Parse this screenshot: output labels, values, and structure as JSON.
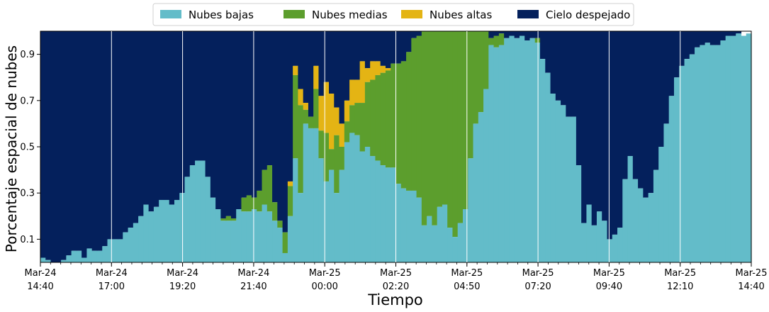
{
  "chart_data": {
    "type": "area",
    "stacked": true,
    "xlabel": "Tiempo",
    "ylabel": "Porcentaje espacial de nubes",
    "ylim": [
      0,
      1
    ],
    "yticks": [
      0.1,
      0.3,
      0.5,
      0.7,
      0.9
    ],
    "grid": "vertical lines at labeled x ticks",
    "legend_position": "top-center",
    "x_tick_labels": [
      {
        "date": "Mar-24",
        "time": "14:40"
      },
      {
        "date": "Mar-24",
        "time": "17:00"
      },
      {
        "date": "Mar-24",
        "time": "19:20"
      },
      {
        "date": "Mar-24",
        "time": "21:40"
      },
      {
        "date": "Mar-25",
        "time": "00:00"
      },
      {
        "date": "Mar-25",
        "time": "02:20"
      },
      {
        "date": "Mar-25",
        "time": "04:50"
      },
      {
        "date": "Mar-25",
        "time": "07:20"
      },
      {
        "date": "Mar-25",
        "time": "09:40"
      },
      {
        "date": "Mar-25",
        "time": "12:10"
      },
      {
        "date": "Mar-25",
        "time": "14:40"
      }
    ],
    "series": [
      {
        "name": "Nubes bajas",
        "color": "#63bcc9",
        "values": [
          0.02,
          0.01,
          0.0,
          0.0,
          0.01,
          0.03,
          0.05,
          0.05,
          0.02,
          0.06,
          0.05,
          0.05,
          0.07,
          0.1,
          0.1,
          0.1,
          0.13,
          0.15,
          0.17,
          0.2,
          0.25,
          0.22,
          0.24,
          0.27,
          0.27,
          0.25,
          0.27,
          0.3,
          0.37,
          0.42,
          0.44,
          0.44,
          0.37,
          0.28,
          0.23,
          0.18,
          0.18,
          0.18,
          0.23,
          0.22,
          0.22,
          0.23,
          0.22,
          0.25,
          0.22,
          0.18,
          0.15,
          0.04,
          0.2,
          0.45,
          0.3,
          0.6,
          0.58,
          0.58,
          0.45,
          0.35,
          0.4,
          0.3,
          0.4,
          0.52,
          0.56,
          0.55,
          0.48,
          0.5,
          0.46,
          0.44,
          0.42,
          0.41,
          0.41,
          0.34,
          0.32,
          0.31,
          0.31,
          0.28,
          0.16,
          0.2,
          0.16,
          0.24,
          0.25,
          0.15,
          0.11,
          0.17,
          0.23,
          0.45,
          0.6,
          0.65,
          0.75,
          0.94,
          0.93,
          0.94,
          0.97,
          0.98,
          0.97,
          0.98,
          0.96,
          0.97,
          0.95,
          0.88,
          0.82,
          0.73,
          0.7,
          0.68,
          0.63,
          0.63,
          0.42,
          0.17,
          0.25,
          0.16,
          0.22,
          0.18,
          0.1,
          0.12,
          0.15,
          0.36,
          0.46,
          0.36,
          0.32,
          0.28,
          0.3,
          0.4,
          0.5,
          0.6,
          0.72,
          0.8,
          0.85,
          0.88,
          0.9,
          0.93,
          0.94,
          0.95,
          0.94,
          0.94,
          0.96,
          0.98,
          0.98,
          0.99,
          0.98,
          0.99
        ]
      },
      {
        "name": "Nubes medias",
        "color": "#5c9e2d",
        "values": [
          0,
          0,
          0,
          0,
          0,
          0,
          0,
          0,
          0,
          0,
          0,
          0,
          0,
          0,
          0,
          0,
          0,
          0,
          0,
          0,
          0,
          0,
          0,
          0,
          0,
          0,
          0,
          0,
          0,
          0,
          0,
          0,
          0,
          0,
          0,
          0.01,
          0.02,
          0.01,
          0,
          0.06,
          0.07,
          0.05,
          0.09,
          0.15,
          0.2,
          0.08,
          0.03,
          0.09,
          0.13,
          0.36,
          0.38,
          0.06,
          0.05,
          0.17,
          0.12,
          0.21,
          0.09,
          0.25,
          0.1,
          0.09,
          0.12,
          0.14,
          0.21,
          0.28,
          0.33,
          0.37,
          0.4,
          0.42,
          0.45,
          0.52,
          0.55,
          0.6,
          0.66,
          0.7,
          0.84,
          0.8,
          0.84,
          0.76,
          0.75,
          0.85,
          0.89,
          0.83,
          0.77,
          0.55,
          0.4,
          0.35,
          0.25,
          0.03,
          0.05,
          0.05,
          0,
          0,
          0,
          0,
          0,
          0,
          0.02,
          0,
          0,
          0,
          0,
          0,
          0,
          0,
          0,
          0,
          0,
          0,
          0,
          0,
          0,
          0,
          0,
          0,
          0,
          0,
          0,
          0,
          0,
          0,
          0,
          0,
          0,
          0,
          0,
          0,
          0,
          0,
          0,
          0,
          0,
          0,
          0,
          0,
          0,
          0,
          0,
          0
        ]
      },
      {
        "name": "Nubes altas",
        "color": "#e4b414",
        "values": [
          0,
          0,
          0,
          0,
          0,
          0,
          0,
          0,
          0,
          0,
          0,
          0,
          0,
          0,
          0,
          0,
          0,
          0,
          0,
          0,
          0,
          0,
          0,
          0,
          0,
          0,
          0,
          0,
          0,
          0,
          0,
          0,
          0,
          0,
          0,
          0,
          0,
          0,
          0,
          0,
          0,
          0,
          0,
          0,
          0,
          0,
          0,
          0,
          0.02,
          0.04,
          0.07,
          0.03,
          0,
          0.1,
          0.15,
          0.22,
          0.24,
          0.12,
          0.1,
          0.09,
          0.11,
          0.1,
          0.18,
          0.06,
          0.08,
          0.06,
          0.03,
          0.01,
          0,
          0,
          0,
          0,
          0,
          0,
          0,
          0,
          0,
          0,
          0,
          0,
          0,
          0,
          0,
          0,
          0,
          0,
          0,
          0,
          0,
          0,
          0,
          0,
          0,
          0,
          0,
          0,
          0,
          0,
          0,
          0,
          0,
          0,
          0,
          0,
          0,
          0,
          0,
          0,
          0,
          0,
          0,
          0,
          0,
          0,
          0,
          0,
          0,
          0,
          0,
          0,
          0,
          0,
          0,
          0,
          0,
          0,
          0,
          0,
          0,
          0,
          0,
          0,
          0,
          0,
          0,
          0
        ]
      },
      {
        "name": "Cielo despejado",
        "color": "#04205c",
        "values_note": "remainder to 1.0"
      }
    ]
  }
}
